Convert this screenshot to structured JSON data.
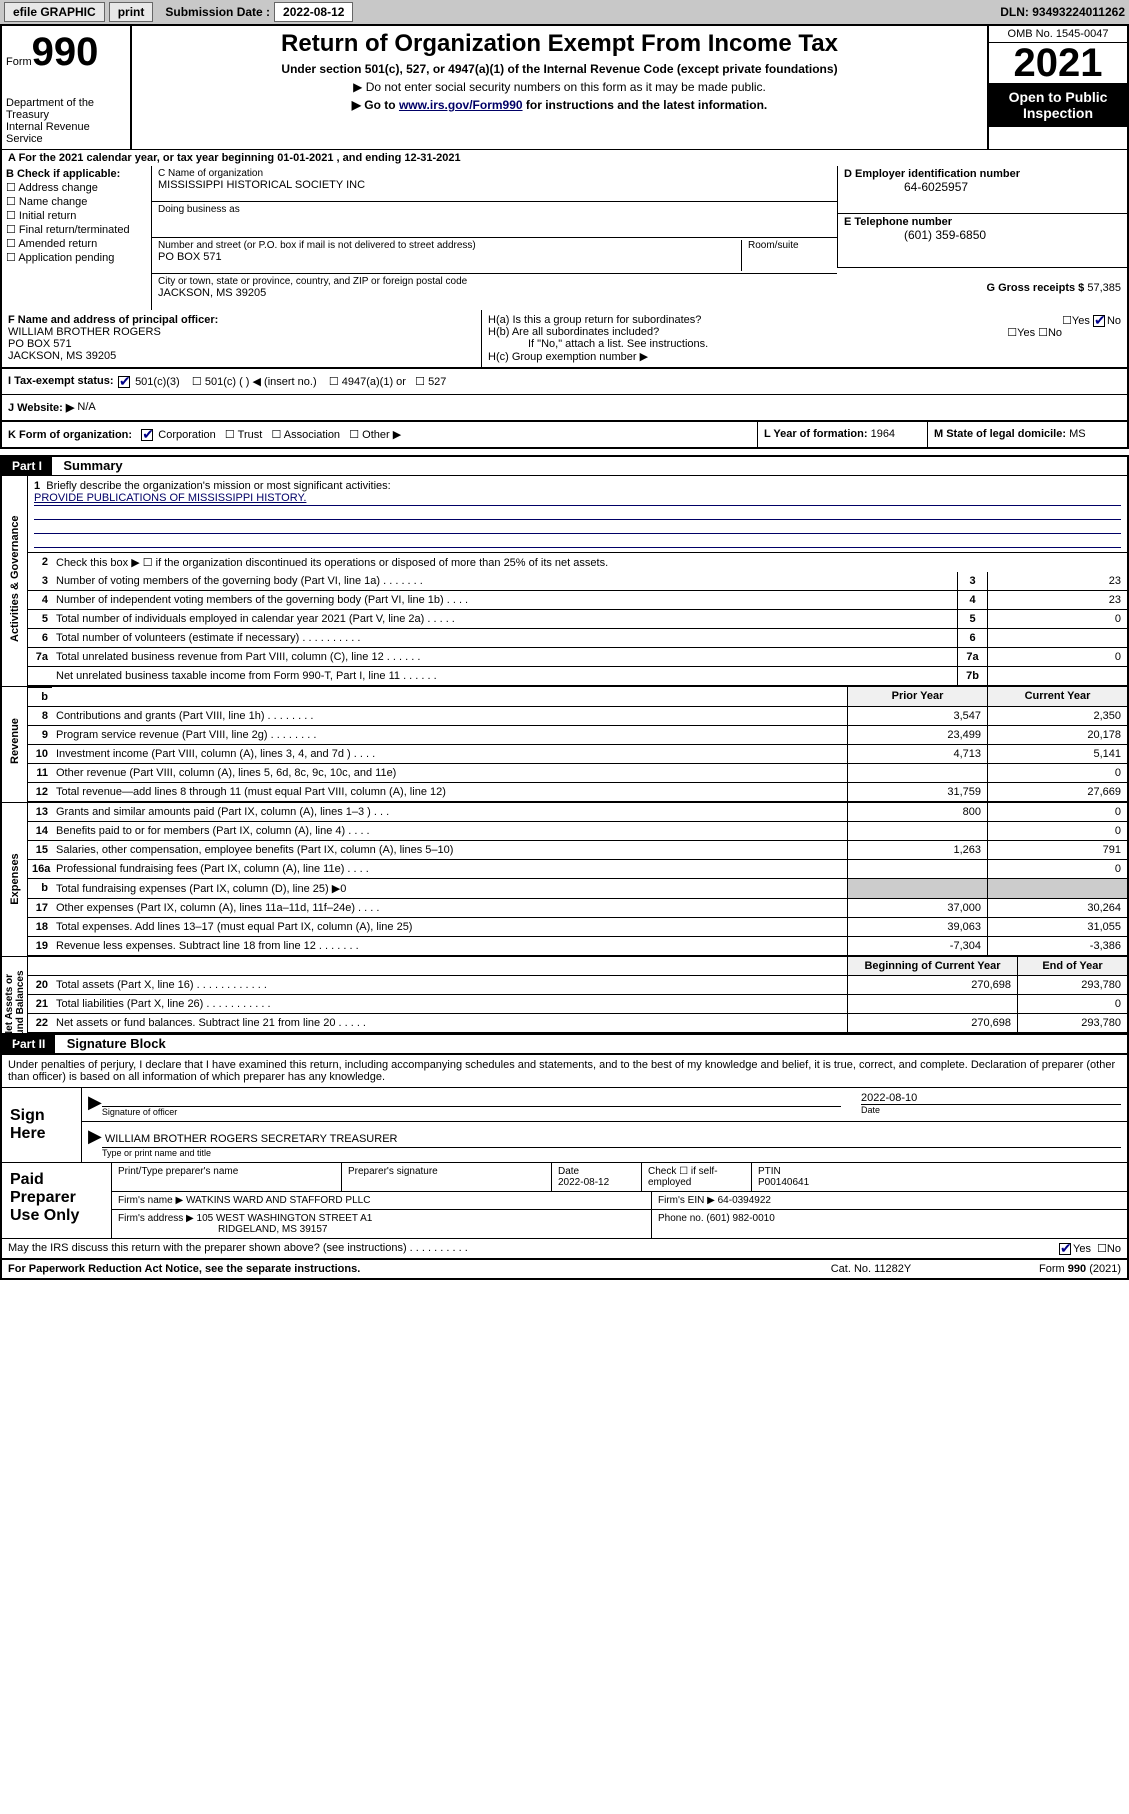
{
  "topbar": {
    "efile": "efile GRAPHIC",
    "print": "print",
    "sub_label": "Submission Date :",
    "sub_date": "2022-08-12",
    "dln": "DLN: 93493224011262"
  },
  "header": {
    "form": "Form",
    "num": "990",
    "dept": "Department of the Treasury\nInternal Revenue Service",
    "title": "Return of Organization Exempt From Income Tax",
    "sub1": "Under section 501(c), 527, or 4947(a)(1) of the Internal Revenue Code (except private foundations)",
    "sub2a": "▶ Do not enter social security numbers on this form as it may be made public.",
    "sub2b_pre": "▶ Go to ",
    "sub2b_link": "www.irs.gov/Form990",
    "sub2b_post": " for instructions and the latest information.",
    "omb": "OMB No. 1545-0047",
    "year": "2021",
    "open": "Open to Public Inspection"
  },
  "row_a": "A For the 2021 calendar year, or tax year beginning 01-01-2021   , and ending 12-31-2021",
  "section_b": {
    "hdr": "B Check if applicable:",
    "opts": [
      "Address change",
      "Name change",
      "Initial return",
      "Final return/terminated",
      "Amended return",
      "Application pending"
    ]
  },
  "section_c": {
    "name_lbl": "C Name of organization",
    "name": "MISSISSIPPI HISTORICAL SOCIETY INC",
    "dba_lbl": "Doing business as",
    "dba": "",
    "addr_lbl": "Number and street (or P.O. box if mail is not delivered to street address)",
    "room_lbl": "Room/suite",
    "addr": "PO BOX 571",
    "city_lbl": "City or town, state or province, country, and ZIP or foreign postal code",
    "city": "JACKSON, MS  39205"
  },
  "section_d": {
    "lbl": "D Employer identification number",
    "val": "64-6025957"
  },
  "section_e": {
    "lbl": "E Telephone number",
    "val": "(601) 359-6850"
  },
  "section_g": {
    "lbl": "G Gross receipts $",
    "val": "57,385"
  },
  "section_f": {
    "lbl": "F Name and address of principal officer:",
    "name": "WILLIAM BROTHER ROGERS",
    "addr1": "PO BOX 571",
    "addr2": "JACKSON, MS  39205"
  },
  "section_h": {
    "ha": "H(a)  Is this a group return for subordinates?",
    "hb": "H(b)  Are all subordinates included?",
    "hb_note": "If \"No,\" attach a list. See instructions.",
    "hc": "H(c)  Group exemption number ▶"
  },
  "section_i": {
    "lbl": "I    Tax-exempt status:",
    "o1": "501(c)(3)",
    "o2": "501(c) (   ) ◀ (insert no.)",
    "o3": "4947(a)(1) or",
    "o4": "527"
  },
  "section_j": {
    "lbl": "J   Website: ▶",
    "val": "N/A"
  },
  "section_k": {
    "lbl": "K Form of organization:",
    "o1": "Corporation",
    "o2": "Trust",
    "o3": "Association",
    "o4": "Other ▶"
  },
  "section_l": {
    "lbl": "L Year of formation:",
    "val": "1964"
  },
  "section_m": {
    "lbl": "M State of legal domicile:",
    "val": "MS"
  },
  "part1": {
    "num": "Part I",
    "title": "Summary"
  },
  "mission": {
    "n": "1",
    "lbl": "Briefly describe the organization's mission or most significant activities:",
    "text": "PROVIDE PUBLICATIONS OF MISSISSIPPI HISTORY."
  },
  "line2": {
    "n": "2",
    "t": "Check this box ▶ ☐  if the organization discontinued its operations or disposed of more than 25% of its net assets."
  },
  "vtabs": {
    "gov": "Activities & Governance",
    "rev": "Revenue",
    "exp": "Expenses",
    "net": "Net Assets or\nFund Balances"
  },
  "prior_hdr": "Prior Year",
  "curr_hdr": "Current Year",
  "begin_hdr": "Beginning of Current Year",
  "end_hdr": "End of Year",
  "gov_lines": [
    {
      "n": "3",
      "t": "Number of voting members of the governing body (Part VI, line 1a)  .   .   .   .   .   .   .",
      "nb": "3",
      "v": "23"
    },
    {
      "n": "4",
      "t": "Number of independent voting members of the governing body (Part VI, line 1b)  .   .   .   .",
      "nb": "4",
      "v": "23"
    },
    {
      "n": "5",
      "t": "Total number of individuals employed in calendar year 2021 (Part V, line 2a)  .   .   .   .   .",
      "nb": "5",
      "v": "0"
    },
    {
      "n": "6",
      "t": "Total number of volunteers (estimate if necessary)  .   .   .   .   .   .   .   .   .   .",
      "nb": "6",
      "v": ""
    },
    {
      "n": "7a",
      "t": "Total unrelated business revenue from Part VIII, column (C), line 12  .   .   .   .   .   .",
      "nb": "7a",
      "v": "0"
    },
    {
      "n": "",
      "t": "Net unrelated business taxable income from Form 990-T, Part I, line 11  .   .   .   .   .   .",
      "nb": "7b",
      "v": ""
    }
  ],
  "rev_lines": [
    {
      "n": "8",
      "t": "Contributions and grants (Part VIII, line 1h)   .   .   .   .   .   .   .   .",
      "p": "3,547",
      "c": "2,350"
    },
    {
      "n": "9",
      "t": "Program service revenue (Part VIII, line 2g)   .   .   .   .   .   .   .   .",
      "p": "23,499",
      "c": "20,178"
    },
    {
      "n": "10",
      "t": "Investment income (Part VIII, column (A), lines 3, 4, and 7d )   .   .   .   .",
      "p": "4,713",
      "c": "5,141"
    },
    {
      "n": "11",
      "t": "Other revenue (Part VIII, column (A), lines 5, 6d, 8c, 9c, 10c, and 11e)",
      "p": "",
      "c": "0"
    },
    {
      "n": "12",
      "t": "Total revenue—add lines 8 through 11 (must equal Part VIII, column (A), line 12)",
      "p": "31,759",
      "c": "27,669"
    }
  ],
  "exp_lines": [
    {
      "n": "13",
      "t": "Grants and similar amounts paid (Part IX, column (A), lines 1–3 )   .   .   .",
      "p": "800",
      "c": "0"
    },
    {
      "n": "14",
      "t": "Benefits paid to or for members (Part IX, column (A), line 4)   .   .   .   .",
      "p": "",
      "c": "0"
    },
    {
      "n": "15",
      "t": "Salaries, other compensation, employee benefits (Part IX, column (A), lines 5–10)",
      "p": "1,263",
      "c": "791"
    },
    {
      "n": "16a",
      "t": "Professional fundraising fees (Part IX, column (A), line 11e)   .   .   .   .",
      "p": "",
      "c": "0"
    },
    {
      "n": "b",
      "t": "Total fundraising expenses (Part IX, column (D), line 25) ▶0",
      "p": "GRAY",
      "c": "GRAY"
    },
    {
      "n": "17",
      "t": "Other expenses (Part IX, column (A), lines 11a–11d, 11f–24e)  .   .   .   .",
      "p": "37,000",
      "c": "30,264"
    },
    {
      "n": "18",
      "t": "Total expenses. Add lines 13–17 (must equal Part IX, column (A), line 25)",
      "p": "39,063",
      "c": "31,055"
    },
    {
      "n": "19",
      "t": "Revenue less expenses. Subtract line 18 from line 12  .   .   .   .   .   .   .",
      "p": "-7,304",
      "c": "-3,386"
    }
  ],
  "net_lines": [
    {
      "n": "20",
      "t": "Total assets (Part X, line 16)  .   .   .   .   .   .   .   .   .   .   .   .",
      "p": "270,698",
      "c": "293,780"
    },
    {
      "n": "21",
      "t": "Total liabilities (Part X, line 26)  .   .   .   .   .   .   .   .   .   .   .",
      "p": "",
      "c": "0"
    },
    {
      "n": "22",
      "t": "Net assets or fund balances. Subtract line 21 from line 20   .   .   .   .   .",
      "p": "270,698",
      "c": "293,780"
    }
  ],
  "part2": {
    "num": "Part II",
    "title": "Signature Block"
  },
  "sig_decl": "Under penalties of perjury, I declare that I have examined this return, including accompanying schedules and statements, and to the best of my knowledge and belief, it is true, correct, and complete. Declaration of preparer (other than officer) is based on all information of which preparer has any knowledge.",
  "sign_here": "Sign Here",
  "sig_officer_lbl": "Signature of officer",
  "sig_date_lbl": "Date",
  "sig_date": "2022-08-10",
  "sig_name": "WILLIAM BROTHER ROGERS  SECRETARY TREASURER",
  "sig_name_lbl": "Type or print name and title",
  "paid_prep": "Paid Preparer Use Only",
  "prep": {
    "name_lbl": "Print/Type preparer's name",
    "sig_lbl": "Preparer's signature",
    "date_lbl": "Date",
    "date": "2022-08-12",
    "self_lbl": "Check ☐ if self-employed",
    "ptin_lbl": "PTIN",
    "ptin": "P00140641",
    "firm_name_lbl": "Firm's name    ▶",
    "firm_name": "WATKINS WARD AND STAFFORD PLLC",
    "ein_lbl": "Firm's EIN ▶",
    "ein": "64-0394922",
    "addr_lbl": "Firm's address ▶",
    "addr1": "105 WEST WASHINGTON STREET A1",
    "addr2": "RIDGELAND, MS  39157",
    "phone_lbl": "Phone no.",
    "phone": "(601) 982-0010"
  },
  "irs_q": "May the IRS discuss this return with the preparer shown above? (see instructions)   .   .   .   .   .   .   .   .   .   .",
  "footer": {
    "f1": "For Paperwork Reduction Act Notice, see the separate instructions.",
    "f2": "Cat. No. 11282Y",
    "f3": "Form 990 (2021)"
  }
}
